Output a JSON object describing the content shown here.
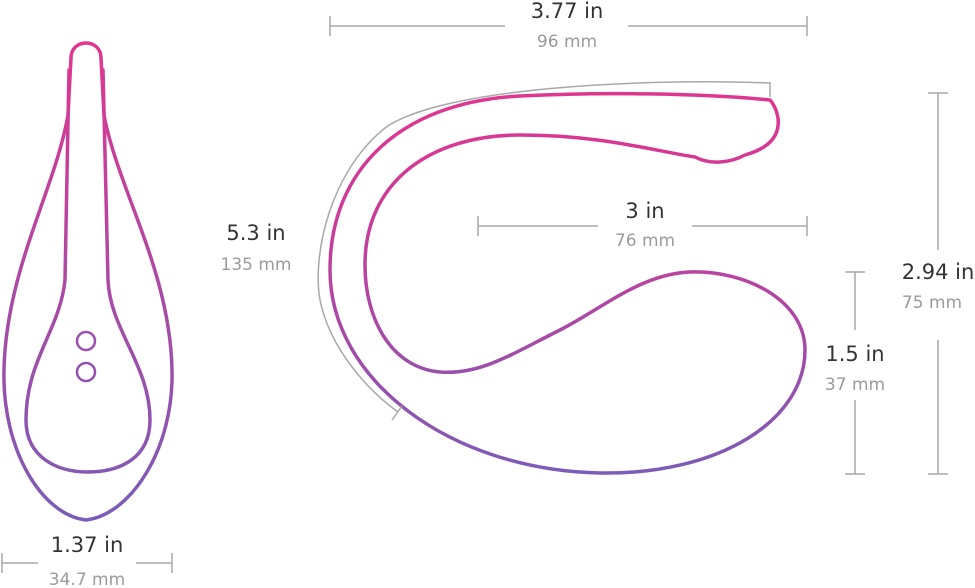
{
  "colors": {
    "top": "#e0368f",
    "bottom": "#7b5cb8",
    "dimension_line": "#a8a8a8",
    "label": "#333333",
    "sublabel": "#9a9a9a"
  },
  "dimensions": {
    "length_top": {
      "in": "3.77 in",
      "mm": "96 mm"
    },
    "inner_width": {
      "in": "3 in",
      "mm": "76 mm"
    },
    "arc_length": {
      "in": "5.3 in",
      "mm": "135 mm"
    },
    "total_height": {
      "in": "2.94 in",
      "mm": "75 mm"
    },
    "inner_height": {
      "in": "1.5 in",
      "mm": "37 mm"
    },
    "front_width": {
      "in": "1.37 in",
      "mm": "34.7 mm"
    }
  }
}
